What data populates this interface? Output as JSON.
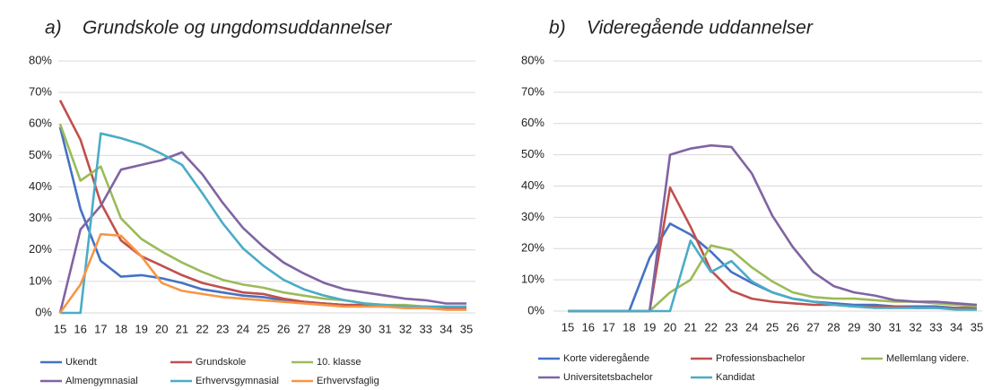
{
  "chart_data": [
    {
      "type": "line",
      "title": "a)    Grundskole og ungdomsuddannelser",
      "categories": [
        "15",
        "16",
        "17",
        "18",
        "19",
        "20",
        "21",
        "22",
        "23",
        "24",
        "25",
        "26",
        "27",
        "28",
        "29",
        "30",
        "31",
        "32",
        "33",
        "34",
        "35"
      ],
      "ylim": [
        0,
        80
      ],
      "yticks": [
        {
          "value": 0,
          "label": "0%"
        },
        {
          "value": 10,
          "label": "10%"
        },
        {
          "value": 20,
          "label": "20%"
        },
        {
          "value": 30,
          "label": "30%"
        },
        {
          "value": 40,
          "label": "40%"
        },
        {
          "value": 50,
          "label": "50%"
        },
        {
          "value": 60,
          "label": "60%"
        },
        {
          "value": 70,
          "label": "70%"
        },
        {
          "value": 80,
          "label": "80%"
        }
      ],
      "grid": true,
      "legend": "bottom",
      "series": [
        {
          "name": "Ukendt",
          "color": "#4472c4",
          "values": [
            59,
            33,
            16.5,
            11.5,
            12,
            11,
            9.5,
            7.5,
            6.5,
            5.5,
            5,
            4,
            3.5,
            3,
            2.5,
            2.5,
            2,
            2,
            2,
            1.5,
            1.5
          ]
        },
        {
          "name": "Grundskole",
          "color": "#c0504d",
          "values": [
            67.5,
            55,
            35,
            23,
            18,
            15,
            12,
            9.5,
            8,
            6.5,
            6,
            4.5,
            3.5,
            3,
            2.5,
            2.5,
            2,
            2,
            2,
            1.5,
            1.5
          ]
        },
        {
          "name": "10. klasse",
          "color": "#9bbb59",
          "values": [
            60,
            42,
            46.5,
            30,
            23.5,
            19.5,
            16,
            13,
            10.5,
            9,
            8,
            6.5,
            5.5,
            4.5,
            4,
            3,
            2.5,
            2.5,
            2,
            2,
            2
          ]
        },
        {
          "name": "Almengymnasial",
          "color": "#8064a2",
          "values": [
            0,
            26.5,
            34,
            45.5,
            47,
            48.5,
            51,
            44,
            35,
            27,
            21,
            16,
            12.5,
            9.5,
            7.5,
            6.5,
            5.5,
            4.5,
            4,
            3,
            3
          ]
        },
        {
          "name": "Erhvervsgymnasial",
          "color": "#4bacc6",
          "values": [
            0,
            0,
            57,
            55.5,
            53.5,
            50.5,
            47,
            38,
            28.5,
            20.5,
            15,
            10.5,
            7.5,
            5.5,
            4,
            3,
            2.5,
            2,
            2,
            2,
            2
          ]
        },
        {
          "name": "Erhvervsfaglig",
          "color": "#f79646",
          "values": [
            0,
            9,
            25,
            24.5,
            18,
            9.5,
            7,
            6,
            5,
            4.5,
            4,
            3.5,
            3,
            2.5,
            2,
            2,
            2,
            1.5,
            1.5,
            1,
            1
          ]
        }
      ]
    },
    {
      "type": "line",
      "title": "b)    Videregående uddannelser",
      "categories": [
        "15",
        "16",
        "17",
        "18",
        "19",
        "20",
        "21",
        "22",
        "23",
        "24",
        "25",
        "26",
        "27",
        "28",
        "29",
        "30",
        "31",
        "32",
        "33",
        "34",
        "35"
      ],
      "ylim": [
        0,
        80
      ],
      "yticks": [
        {
          "value": 0,
          "label": "0%"
        },
        {
          "value": 10,
          "label": "10%"
        },
        {
          "value": 20,
          "label": "20%"
        },
        {
          "value": 30,
          "label": "30%"
        },
        {
          "value": 40,
          "label": "40%"
        },
        {
          "value": 50,
          "label": "50%"
        },
        {
          "value": 60,
          "label": "60%"
        },
        {
          "value": 70,
          "label": "70%"
        },
        {
          "value": 80,
          "label": "80%"
        }
      ],
      "grid": true,
      "legend": "bottom",
      "series": [
        {
          "name": "Korte videregående",
          "color": "#4472c4",
          "values": [
            0,
            0,
            0,
            0,
            17,
            28,
            24.5,
            19,
            12.5,
            9,
            6,
            4,
            3,
            2.5,
            2,
            2,
            1.5,
            1.5,
            1.5,
            1,
            1
          ]
        },
        {
          "name": "Professionsbachelor",
          "color": "#c0504d",
          "values": [
            0,
            0,
            0,
            0,
            0,
            39.5,
            27,
            13,
            6.5,
            4,
            3,
            2.5,
            2,
            2,
            1.5,
            1.5,
            1.5,
            1,
            1,
            1,
            1
          ]
        },
        {
          "name": "Mellemlang videre.",
          "color": "#9bbb59",
          "values": [
            0,
            0,
            0,
            0,
            0,
            6,
            10,
            21,
            19.5,
            14,
            9.5,
            6,
            4.5,
            4,
            4,
            3.5,
            3,
            3,
            2.5,
            2,
            1.5
          ]
        },
        {
          "name": "Universitetsbachelor",
          "color": "#8064a2",
          "values": [
            0,
            0,
            0,
            0,
            0,
            50,
            52,
            53,
            52.5,
            44,
            30.5,
            20.5,
            12.5,
            8,
            6,
            5,
            3.5,
            3,
            3,
            2.5,
            2
          ]
        },
        {
          "name": "Kandidat",
          "color": "#4bacc6",
          "values": [
            0,
            0,
            0,
            0,
            0,
            0,
            22.5,
            12.5,
            16,
            9.5,
            6,
            4,
            3,
            2,
            1.5,
            1,
            1,
            1,
            1,
            0.5,
            0.5
          ]
        }
      ]
    }
  ]
}
